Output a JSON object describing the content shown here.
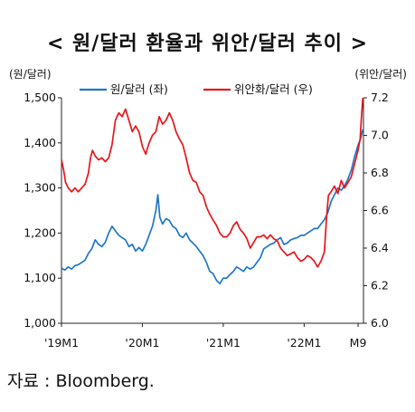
{
  "title": "< 원/달러 환율과 위안/달러 추이 >",
  "source": "자료 : Bloomberg.",
  "chart_data": {
    "type": "line",
    "left_axis": {
      "label": "(원/달러)",
      "ylim": [
        1000,
        1500
      ],
      "ticks": [
        "1,000",
        "1,100",
        "1,200",
        "1,300",
        "1,400",
        "1,500"
      ],
      "tick_values": [
        1000,
        1100,
        1200,
        1300,
        1400,
        1500
      ]
    },
    "right_axis": {
      "label": "(위안/달러)",
      "ylim": [
        6.0,
        7.2
      ],
      "ticks": [
        "6.0",
        "6.2",
        "6.4",
        "6.6",
        "6.8",
        "7.0",
        "7.2"
      ],
      "tick_values": [
        6.0,
        6.2,
        6.4,
        6.6,
        6.8,
        7.0,
        7.2
      ]
    },
    "x_ticks": [
      {
        "label": "'19M1",
        "t": 0
      },
      {
        "label": "'20M1",
        "t": 12
      },
      {
        "label": "'21M1",
        "t": 24
      },
      {
        "label": "'22M1",
        "t": 36
      },
      {
        "label": "M9",
        "t": 44
      }
    ],
    "xlim": [
      0,
      44.8
    ],
    "legend_position": "top",
    "series": [
      {
        "name": "원/달러 (좌)",
        "axis": "left",
        "color": "#1f77c8",
        "points": [
          [
            0,
            1122
          ],
          [
            0.5,
            1118
          ],
          [
            1,
            1125
          ],
          [
            1.5,
            1120
          ],
          [
            2,
            1128
          ],
          [
            2.5,
            1130
          ],
          [
            3,
            1135
          ],
          [
            3.5,
            1140
          ],
          [
            4,
            1155
          ],
          [
            4.5,
            1165
          ],
          [
            5,
            1185
          ],
          [
            5.5,
            1175
          ],
          [
            6,
            1170
          ],
          [
            6.5,
            1180
          ],
          [
            7,
            1200
          ],
          [
            7.5,
            1215
          ],
          [
            8,
            1205
          ],
          [
            8.5,
            1195
          ],
          [
            9,
            1190
          ],
          [
            9.5,
            1185
          ],
          [
            10,
            1170
          ],
          [
            10.5,
            1175
          ],
          [
            11,
            1160
          ],
          [
            11.5,
            1168
          ],
          [
            12,
            1160
          ],
          [
            12.5,
            1175
          ],
          [
            13,
            1195
          ],
          [
            13.5,
            1215
          ],
          [
            14,
            1250
          ],
          [
            14.3,
            1285
          ],
          [
            14.6,
            1235
          ],
          [
            15,
            1220
          ],
          [
            15.5,
            1232
          ],
          [
            16,
            1228
          ],
          [
            16.5,
            1215
          ],
          [
            17,
            1210
          ],
          [
            17.5,
            1195
          ],
          [
            18,
            1190
          ],
          [
            18.5,
            1200
          ],
          [
            19,
            1185
          ],
          [
            19.5,
            1178
          ],
          [
            20,
            1170
          ],
          [
            20.5,
            1160
          ],
          [
            21,
            1150
          ],
          [
            21.5,
            1135
          ],
          [
            22,
            1115
          ],
          [
            22.5,
            1110
          ],
          [
            23,
            1095
          ],
          [
            23.5,
            1088
          ],
          [
            24,
            1100
          ],
          [
            24.5,
            1100
          ],
          [
            25,
            1108
          ],
          [
            25.5,
            1115
          ],
          [
            26,
            1125
          ],
          [
            26.5,
            1120
          ],
          [
            27,
            1115
          ],
          [
            27.5,
            1125
          ],
          [
            28,
            1120
          ],
          [
            28.5,
            1125
          ],
          [
            29,
            1135
          ],
          [
            29.5,
            1145
          ],
          [
            30,
            1165
          ],
          [
            30.5,
            1170
          ],
          [
            31,
            1175
          ],
          [
            31.5,
            1178
          ],
          [
            32,
            1185
          ],
          [
            32.5,
            1190
          ],
          [
            33,
            1175
          ],
          [
            33.5,
            1178
          ],
          [
            34,
            1185
          ],
          [
            34.5,
            1188
          ],
          [
            35,
            1190
          ],
          [
            35.5,
            1195
          ],
          [
            36,
            1195
          ],
          [
            36.5,
            1200
          ],
          [
            37,
            1205
          ],
          [
            37.5,
            1210
          ],
          [
            38,
            1210
          ],
          [
            38.5,
            1220
          ],
          [
            39,
            1230
          ],
          [
            39.5,
            1245
          ],
          [
            40,
            1270
          ],
          [
            40.5,
            1285
          ],
          [
            41,
            1300
          ],
          [
            41.5,
            1295
          ],
          [
            42,
            1305
          ],
          [
            42.5,
            1320
          ],
          [
            43,
            1340
          ],
          [
            43.5,
            1370
          ],
          [
            44,
            1395
          ],
          [
            44.4,
            1410
          ],
          [
            44.7,
            1430
          ]
        ]
      },
      {
        "name": "위안화/달러 (우)",
        "axis": "right",
        "color": "#e8151b",
        "points": [
          [
            0,
            6.87
          ],
          [
            0.3,
            6.82
          ],
          [
            0.6,
            6.75
          ],
          [
            1,
            6.72
          ],
          [
            1.5,
            6.7
          ],
          [
            2,
            6.72
          ],
          [
            2.5,
            6.7
          ],
          [
            3,
            6.72
          ],
          [
            3.5,
            6.74
          ],
          [
            4,
            6.8
          ],
          [
            4.3,
            6.88
          ],
          [
            4.6,
            6.92
          ],
          [
            5,
            6.89
          ],
          [
            5.5,
            6.87
          ],
          [
            6,
            6.88
          ],
          [
            6.5,
            6.86
          ],
          [
            7,
            6.88
          ],
          [
            7.5,
            6.95
          ],
          [
            8,
            7.08
          ],
          [
            8.5,
            7.12
          ],
          [
            9,
            7.1
          ],
          [
            9.5,
            7.14
          ],
          [
            10,
            7.08
          ],
          [
            10.5,
            7.02
          ],
          [
            11,
            7.05
          ],
          [
            11.5,
            7.02
          ],
          [
            12,
            6.94
          ],
          [
            12.5,
            6.9
          ],
          [
            13,
            6.96
          ],
          [
            13.5,
            7.0
          ],
          [
            14,
            7.02
          ],
          [
            14.5,
            7.1
          ],
          [
            15,
            7.06
          ],
          [
            15.5,
            7.08
          ],
          [
            16,
            7.12
          ],
          [
            16.5,
            7.08
          ],
          [
            17,
            7.02
          ],
          [
            17.5,
            6.98
          ],
          [
            18,
            6.95
          ],
          [
            18.5,
            6.88
          ],
          [
            19,
            6.8
          ],
          [
            19.5,
            6.76
          ],
          [
            20,
            6.75
          ],
          [
            20.5,
            6.7
          ],
          [
            21,
            6.68
          ],
          [
            21.5,
            6.62
          ],
          [
            22,
            6.58
          ],
          [
            22.5,
            6.55
          ],
          [
            23,
            6.52
          ],
          [
            23.5,
            6.48
          ],
          [
            24,
            6.46
          ],
          [
            24.5,
            6.46
          ],
          [
            25,
            6.48
          ],
          [
            25.5,
            6.52
          ],
          [
            26,
            6.54
          ],
          [
            26.5,
            6.5
          ],
          [
            27,
            6.48
          ],
          [
            27.5,
            6.45
          ],
          [
            28,
            6.4
          ],
          [
            28.5,
            6.43
          ],
          [
            29,
            6.46
          ],
          [
            29.5,
            6.46
          ],
          [
            30,
            6.47
          ],
          [
            30.5,
            6.45
          ],
          [
            31,
            6.47
          ],
          [
            31.5,
            6.45
          ],
          [
            32,
            6.44
          ],
          [
            32.5,
            6.4
          ],
          [
            33,
            6.38
          ],
          [
            33.5,
            6.36
          ],
          [
            34,
            6.37
          ],
          [
            34.5,
            6.38
          ],
          [
            35,
            6.35
          ],
          [
            35.5,
            6.33
          ],
          [
            36,
            6.34
          ],
          [
            36.5,
            6.36
          ],
          [
            37,
            6.35
          ],
          [
            37.5,
            6.33
          ],
          [
            38,
            6.3
          ],
          [
            38.5,
            6.33
          ],
          [
            39,
            6.38
          ],
          [
            39.3,
            6.55
          ],
          [
            39.6,
            6.68
          ],
          [
            40,
            6.7
          ],
          [
            40.5,
            6.73
          ],
          [
            41,
            6.69
          ],
          [
            41.5,
            6.76
          ],
          [
            42,
            6.72
          ],
          [
            42.5,
            6.75
          ],
          [
            43,
            6.78
          ],
          [
            43.5,
            6.85
          ],
          [
            44,
            6.92
          ],
          [
            44.3,
            6.98
          ],
          [
            44.5,
            7.1
          ],
          [
            44.7,
            7.2
          ]
        ]
      }
    ]
  }
}
